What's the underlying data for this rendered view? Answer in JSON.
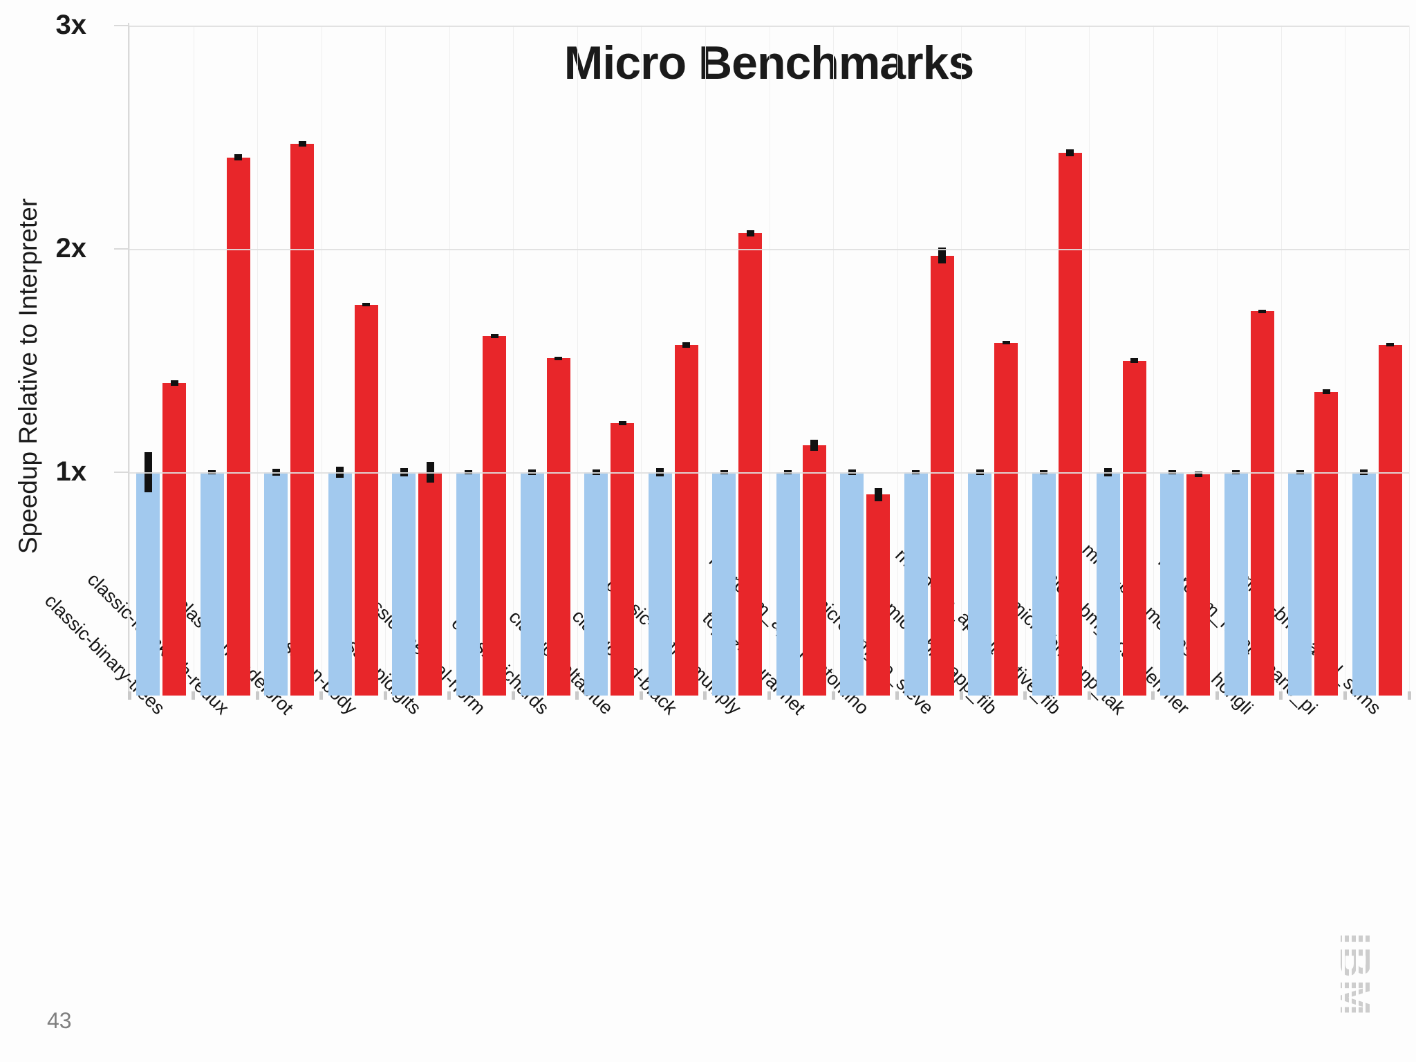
{
  "title": "Micro Benchmarks",
  "y_axis": {
    "label": "Speedup Relative to Interpreter",
    "ticks": [
      {
        "label": "3x",
        "value": 3
      },
      {
        "label": "2x",
        "value": 2
      },
      {
        "label": "1x",
        "value": 1
      }
    ]
  },
  "page_number": "43",
  "logo_text": "IBM",
  "colors": {
    "red_bar": "#e8262a",
    "blue_bar": "#a2c9ee",
    "error_bar": "#111111",
    "grid": "#e0e0e0",
    "axis": "#d9d9d9",
    "page_number_gray": "#7f7f7f",
    "logo_gray": "#cdcdcd"
  },
  "chart_data": {
    "type": "bar",
    "title": "Micro Benchmarks",
    "xlabel": "",
    "ylabel": "Speedup Relative to Interpreter",
    "ylim": [
      0,
      3
    ],
    "grid": "horizontal-and-faint-vertical",
    "legend": "none",
    "categories": [
      "classic-binary-trees",
      "classic-fannkuch-redux",
      "classic-mandelbrot",
      "classic-n-body",
      "classic-pidigits",
      "classic-spectral-norm",
      "classic-richards",
      "classic-deltablue",
      "classic-red-black",
      "classic-matrix-multiply",
      "topaz-neural-net",
      "micro-bm_app_pentomino",
      "micro-bm_so_sieve",
      "micro-bm_app_fib",
      "micro-bm_app_iterative_fib",
      "micro-bm_app_tak",
      "micro-bm_lucas_lehmer",
      "micro-bm_mergesort_hongli",
      "micro-bm_monte_carlo_pi",
      "micro-bm_partial_sums"
    ],
    "series": [
      {
        "name": "blue",
        "color": "#a2c9ee",
        "values": [
          1.0,
          1.0,
          1.0,
          1.0,
          1.0,
          1.0,
          1.0,
          1.0,
          1.0,
          1.0,
          1.0,
          1.0,
          1.0,
          1.0,
          1.0,
          1.0,
          1.0,
          1.0,
          1.0,
          1.0
        ],
        "errors": [
          0.09,
          0.01,
          0.015,
          0.025,
          0.02,
          0.01,
          0.012,
          0.012,
          0.02,
          0.008,
          0.008,
          0.012,
          0.01,
          0.012,
          0.008,
          0.02,
          0.01,
          0.008,
          0.008,
          0.012
        ]
      },
      {
        "name": "red",
        "color": "#e8262a",
        "values": [
          1.4,
          2.41,
          2.47,
          1.75,
          1.0,
          1.61,
          1.51,
          1.22,
          1.57,
          2.07,
          1.12,
          0.9,
          1.97,
          1.58,
          2.43,
          1.5,
          0.99,
          1.72,
          1.36,
          1.57
        ],
        "errors": [
          0.012,
          0.015,
          0.012,
          0.008,
          0.045,
          0.008,
          0.008,
          0.01,
          0.012,
          0.015,
          0.025,
          0.03,
          0.035,
          0.008,
          0.015,
          0.01,
          0.012,
          0.008,
          0.01,
          0.008
        ]
      }
    ]
  }
}
